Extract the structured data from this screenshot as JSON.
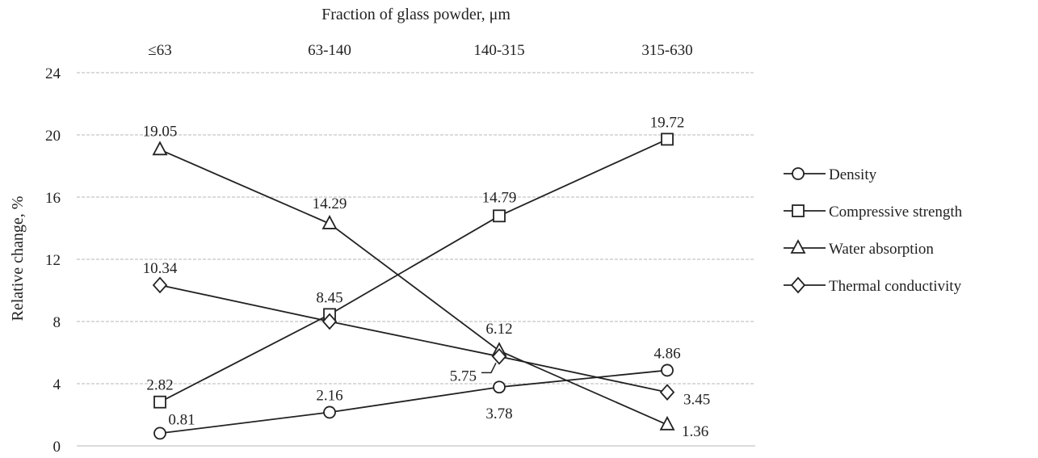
{
  "chart_data": {
    "type": "line",
    "xlabel": "Fraction of glass powder, μm",
    "ylabel": "Relative change, %",
    "categories": [
      "≤63",
      "63-140",
      "140-315",
      "315-630"
    ],
    "ylim": [
      0,
      24
    ],
    "yticks": [
      "0",
      "4",
      "8",
      "12",
      "16",
      "20",
      "24"
    ],
    "grid": true,
    "legend_position": "right",
    "series": [
      {
        "name": "Density",
        "marker": "circle",
        "values": [
          0.81,
          2.16,
          3.78,
          4.86
        ],
        "labels": [
          "0.81",
          "2.16",
          "3.78",
          "4.86"
        ]
      },
      {
        "name": "Compressive strength",
        "marker": "square",
        "values": [
          2.82,
          8.45,
          14.79,
          19.72
        ],
        "labels": [
          "2.82",
          "8.45",
          "14.79",
          "19.72"
        ]
      },
      {
        "name": "Water absorption",
        "marker": "triangle",
        "values": [
          19.05,
          14.29,
          6.12,
          1.36
        ],
        "labels": [
          "19.05",
          "14.29",
          "6.12",
          "1.36"
        ]
      },
      {
        "name": "Thermal conductivity",
        "marker": "diamond",
        "values": [
          10.34,
          8.0,
          5.75,
          3.45
        ],
        "labels": [
          "10.34",
          null,
          "5.75",
          "3.45"
        ]
      }
    ]
  }
}
